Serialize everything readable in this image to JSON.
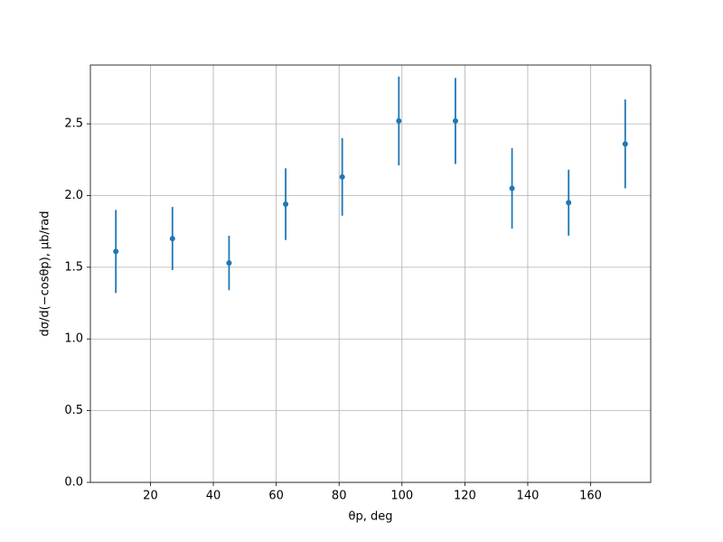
{
  "chart_data": {
    "type": "errorbar",
    "xlabel": "θp, deg",
    "ylabel": "dσ/d(−cosθp), μb/rad",
    "x": [
      9,
      27,
      45,
      63,
      81,
      99,
      117,
      135,
      153,
      171
    ],
    "values": [
      1.61,
      1.7,
      1.53,
      1.94,
      2.13,
      2.52,
      2.52,
      2.05,
      1.95,
      2.36
    ],
    "errors": [
      0.29,
      0.22,
      0.19,
      0.25,
      0.27,
      0.31,
      0.3,
      0.28,
      0.23,
      0.31
    ],
    "color": "#1f77b4",
    "xlim": [
      0.9,
      179.1
    ],
    "xticks": [
      20,
      40,
      60,
      80,
      100,
      120,
      140,
      160
    ],
    "ylim": [
      0,
      2.91
    ],
    "yticks": [
      {
        "value": 0,
        "label": "0.0"
      },
      0.5,
      {
        "value": 1,
        "label": "1.0"
      },
      1.5,
      {
        "value": 2,
        "label": "2.0"
      },
      2.5
    ],
    "grid": true
  }
}
